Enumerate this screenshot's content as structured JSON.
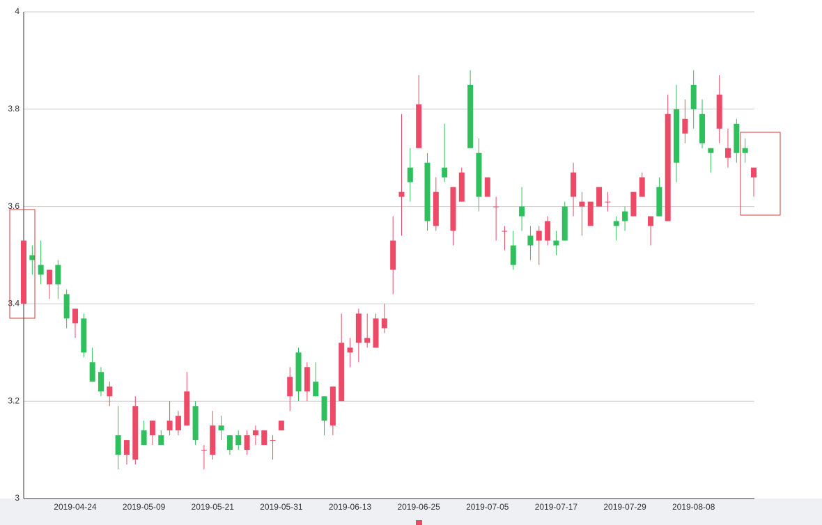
{
  "chart_data": {
    "type": "candlestick",
    "categories": [
      null,
      null,
      null,
      null,
      null,
      null,
      "2019-04-24",
      null,
      null,
      null,
      null,
      null,
      null,
      null,
      "2019-05-09",
      null,
      null,
      null,
      null,
      null,
      null,
      null,
      "2019-05-21",
      null,
      null,
      null,
      null,
      null,
      null,
      null,
      "2019-05-31",
      null,
      null,
      null,
      null,
      null,
      null,
      null,
      "2019-06-13",
      null,
      null,
      null,
      null,
      null,
      null,
      null,
      "2019-06-25",
      null,
      null,
      null,
      null,
      null,
      null,
      null,
      "2019-07-05",
      null,
      null,
      null,
      null,
      null,
      null,
      null,
      "2019-07-17",
      null,
      null,
      null,
      null,
      null,
      null,
      null,
      "2019-07-29",
      null,
      null,
      null,
      null,
      null,
      null,
      null,
      "2019-08-08",
      null,
      null,
      null,
      null,
      null,
      null,
      null
    ],
    "open": [
      3.4,
      3.5,
      3.48,
      3.44,
      3.48,
      3.42,
      3.36,
      3.37,
      3.28,
      3.26,
      3.21,
      3.13,
      3.09,
      3.08,
      3.14,
      3.13,
      3.13,
      3.14,
      3.14,
      3.15,
      3.19,
      3.1,
      3.09,
      3.15,
      3.13,
      3.13,
      3.1,
      3.13,
      3.11,
      3.12,
      3.14,
      3.21,
      3.3,
      3.22,
      3.24,
      3.21,
      3.15,
      3.2,
      3.3,
      3.32,
      3.32,
      3.31,
      3.35,
      3.47,
      3.62,
      3.68,
      3.72,
      3.69,
      3.56,
      3.68,
      3.55,
      3.61,
      3.85,
      3.71,
      3.62,
      3.6,
      3.55,
      3.52,
      3.6,
      3.54,
      3.53,
      3.53,
      3.53,
      3.6,
      3.62,
      3.6,
      3.56,
      3.6,
      3.61,
      3.57,
      3.59,
      3.58,
      3.62,
      3.56,
      3.64,
      3.57,
      3.8,
      3.75,
      3.85,
      3.79,
      3.72,
      3.76,
      3.7,
      3.77,
      3.72,
      3.66
    ],
    "close": [
      3.53,
      3.49,
      3.46,
      3.47,
      3.44,
      3.37,
      3.39,
      3.3,
      3.24,
      3.22,
      3.23,
      3.09,
      3.12,
      3.19,
      3.11,
      3.16,
      3.11,
      3.16,
      3.17,
      3.22,
      3.12,
      3.1,
      3.15,
      3.14,
      3.1,
      3.11,
      3.13,
      3.14,
      3.14,
      3.12,
      3.16,
      3.25,
      3.22,
      3.27,
      3.21,
      3.16,
      3.23,
      3.32,
      3.31,
      3.38,
      3.33,
      3.37,
      3.37,
      3.53,
      3.63,
      3.65,
      3.81,
      3.57,
      3.63,
      3.66,
      3.64,
      3.67,
      3.72,
      3.62,
      3.66,
      3.6,
      3.55,
      3.48,
      3.58,
      3.52,
      3.55,
      3.57,
      3.52,
      3.53,
      3.67,
      3.61,
      3.61,
      3.64,
      3.61,
      3.56,
      3.57,
      3.63,
      3.66,
      3.58,
      3.58,
      3.79,
      3.69,
      3.78,
      3.8,
      3.73,
      3.71,
      3.83,
      3.72,
      3.71,
      3.71,
      3.68
    ],
    "low": [
      3.4,
      3.46,
      3.44,
      3.41,
      3.41,
      3.35,
      3.33,
      3.29,
      3.24,
      3.21,
      3.19,
      3.06,
      3.07,
      3.07,
      3.11,
      3.11,
      3.11,
      3.13,
      3.13,
      3.15,
      3.11,
      3.06,
      3.08,
      3.12,
      3.09,
      3.1,
      3.09,
      3.11,
      3.11,
      3.08,
      3.14,
      3.18,
      3.2,
      3.2,
      3.21,
      3.13,
      3.13,
      3.2,
      3.27,
      3.28,
      3.31,
      3.31,
      3.34,
      3.42,
      3.54,
      3.61,
      3.72,
      3.55,
      3.55,
      3.65,
      3.52,
      3.61,
      3.72,
      3.59,
      3.62,
      3.53,
      3.51,
      3.47,
      3.55,
      3.49,
      3.48,
      3.52,
      3.5,
      3.53,
      3.58,
      3.54,
      3.56,
      3.6,
      3.59,
      3.53,
      3.55,
      3.58,
      3.62,
      3.52,
      3.58,
      3.57,
      3.65,
      3.73,
      3.76,
      3.72,
      3.67,
      3.73,
      3.68,
      3.69,
      3.69,
      3.62
    ],
    "high": [
      3.53,
      3.52,
      3.53,
      3.47,
      3.49,
      3.43,
      3.39,
      3.38,
      3.31,
      3.27,
      3.24,
      3.19,
      3.12,
      3.21,
      3.16,
      3.16,
      3.14,
      3.2,
      3.18,
      3.26,
      3.2,
      3.11,
      3.18,
      3.17,
      3.13,
      3.14,
      3.14,
      3.15,
      3.14,
      3.13,
      3.16,
      3.27,
      3.31,
      3.28,
      3.28,
      3.21,
      3.23,
      3.38,
      3.33,
      3.39,
      3.38,
      3.38,
      3.4,
      3.58,
      3.79,
      3.72,
      3.87,
      3.71,
      3.66,
      3.77,
      3.64,
      3.68,
      3.88,
      3.74,
      3.66,
      3.62,
      3.56,
      3.55,
      3.64,
      3.56,
      3.56,
      3.58,
      3.55,
      3.61,
      3.69,
      3.63,
      3.61,
      3.64,
      3.63,
      3.58,
      3.6,
      3.63,
      3.67,
      3.58,
      3.66,
      3.83,
      3.85,
      3.82,
      3.88,
      3.82,
      3.72,
      3.87,
      3.76,
      3.78,
      3.74,
      3.68
    ],
    "up_color": "#ec4a66",
    "down_color": "#2fbf5c",
    "ylim": [
      3,
      4
    ],
    "yticks": [
      3,
      3.2,
      3.4,
      3.6,
      3.8,
      4
    ],
    "grid": true
  }
}
